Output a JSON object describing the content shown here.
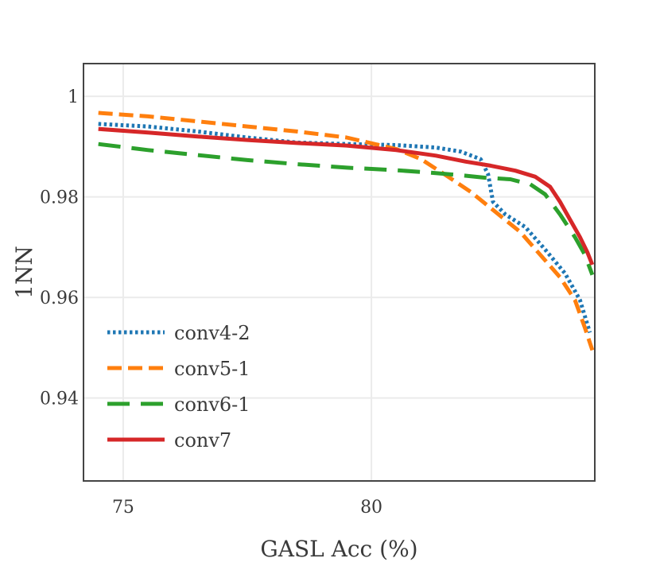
{
  "chart_data": {
    "type": "line",
    "title": "",
    "xlabel": "GASL Acc (%)",
    "ylabel": "1NN",
    "xlim": [
      74.2,
      84.5
    ],
    "ylim": [
      0.9235,
      1.0065
    ],
    "x_ticks": [
      75,
      80
    ],
    "x_tick_labels": [
      "75",
      "80"
    ],
    "y_ticks": [
      0.94,
      0.96,
      0.98,
      1.0
    ],
    "y_tick_labels": [
      "0.94",
      "0.96",
      "0.98",
      "1"
    ],
    "grid": true,
    "legend_position": "lower-left",
    "series": [
      {
        "name": "conv4-2",
        "color": "#1f77b4",
        "style": "dotted",
        "points": [
          [
            74.5,
            0.9945
          ],
          [
            75.5,
            0.994
          ],
          [
            76.5,
            0.993
          ],
          [
            77.5,
            0.9918
          ],
          [
            78.5,
            0.9908
          ],
          [
            79.5,
            0.9905
          ],
          [
            80.5,
            0.9903
          ],
          [
            81.3,
            0.9898
          ],
          [
            81.8,
            0.989
          ],
          [
            82.2,
            0.9875
          ],
          [
            82.35,
            0.9845
          ],
          [
            82.45,
            0.979
          ],
          [
            82.7,
            0.9765
          ],
          [
            83.1,
            0.974
          ],
          [
            83.5,
            0.9695
          ],
          [
            83.9,
            0.9648
          ],
          [
            84.2,
            0.9595
          ],
          [
            84.4,
            0.953
          ]
        ]
      },
      {
        "name": "conv5-1",
        "color": "#ff7f0e",
        "style": "dashed",
        "points": [
          [
            74.5,
            0.9967
          ],
          [
            75.5,
            0.996
          ],
          [
            76.5,
            0.995
          ],
          [
            77.5,
            0.994
          ],
          [
            78.5,
            0.993
          ],
          [
            79.5,
            0.9918
          ],
          [
            80.5,
            0.9895
          ],
          [
            81.0,
            0.9875
          ],
          [
            81.5,
            0.9843
          ],
          [
            82.0,
            0.981
          ],
          [
            82.5,
            0.977
          ],
          [
            83.0,
            0.973
          ],
          [
            83.4,
            0.9685
          ],
          [
            83.8,
            0.964
          ],
          [
            84.1,
            0.9595
          ],
          [
            84.3,
            0.954
          ],
          [
            84.45,
            0.9495
          ]
        ]
      },
      {
        "name": "conv6-1",
        "color": "#2ca02c",
        "style": "longdash",
        "points": [
          [
            74.5,
            0.9905
          ],
          [
            75.5,
            0.9893
          ],
          [
            76.5,
            0.9883
          ],
          [
            77.5,
            0.9873
          ],
          [
            78.5,
            0.9865
          ],
          [
            79.5,
            0.9858
          ],
          [
            80.5,
            0.9853
          ],
          [
            81.2,
            0.9848
          ],
          [
            81.8,
            0.9843
          ],
          [
            82.3,
            0.9838
          ],
          [
            82.8,
            0.9835
          ],
          [
            83.2,
            0.9825
          ],
          [
            83.5,
            0.9805
          ],
          [
            83.8,
            0.9765
          ],
          [
            84.1,
            0.972
          ],
          [
            84.3,
            0.9685
          ],
          [
            84.45,
            0.9645
          ]
        ]
      },
      {
        "name": "conv7",
        "color": "#d62728",
        "style": "solid",
        "points": [
          [
            74.5,
            0.9935
          ],
          [
            75.5,
            0.9928
          ],
          [
            76.5,
            0.992
          ],
          [
            77.5,
            0.9913
          ],
          [
            78.5,
            0.9907
          ],
          [
            79.5,
            0.9902
          ],
          [
            80.5,
            0.9893
          ],
          [
            81.3,
            0.9882
          ],
          [
            81.9,
            0.987
          ],
          [
            82.4,
            0.9862
          ],
          [
            82.9,
            0.9852
          ],
          [
            83.3,
            0.984
          ],
          [
            83.6,
            0.982
          ],
          [
            83.8,
            0.979
          ],
          [
            84.0,
            0.9755
          ],
          [
            84.2,
            0.972
          ],
          [
            84.35,
            0.969
          ],
          [
            84.45,
            0.9665
          ]
        ]
      }
    ]
  }
}
